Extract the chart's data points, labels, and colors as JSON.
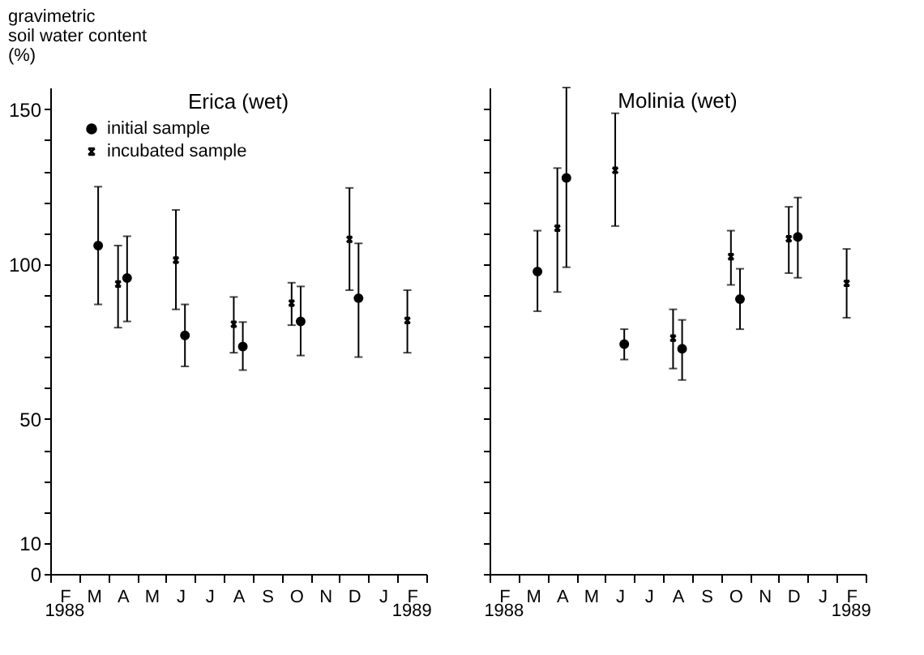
{
  "chart_data": [
    {
      "type": "scatter",
      "title": "Erica (wet)",
      "ylabel": "gravimetric\nsoil water content\n(%)",
      "categories": [
        "F",
        "M",
        "A",
        "M",
        "J",
        "J",
        "A",
        "S",
        "O",
        "N",
        "D",
        "J",
        "F"
      ],
      "ylim": [
        0,
        157
      ],
      "yticks": [
        0,
        10,
        {
          "value": 20,
          "label": null
        },
        {
          "value": 30,
          "label": null
        },
        {
          "value": 40,
          "label": null
        },
        50,
        {
          "value": 60,
          "label": null
        },
        {
          "value": 70,
          "label": null
        },
        {
          "value": 80,
          "label": null
        },
        {
          "value": 90,
          "label": null
        },
        100,
        {
          "value": 110,
          "label": null
        },
        {
          "value": 120,
          "label": null
        },
        {
          "value": 130,
          "label": null
        },
        {
          "value": 140,
          "label": null
        },
        150
      ],
      "legend": "top left",
      "annotations": [
        "1988",
        "1989"
      ],
      "series": [
        {
          "name": "initial sample",
          "color": "#000000",
          "marker": "circle",
          "values": [
            null,
            106,
            95.5,
            null,
            77,
            null,
            73.4,
            null,
            81.5,
            null,
            89,
            null,
            null
          ],
          "errors": [
            null,
            [
              87,
              125
            ],
            [
              81.5,
              109
            ],
            null,
            [
              67,
              87
            ],
            null,
            [
              65.8,
              81.3
            ],
            null,
            [
              70.5,
              92.8
            ],
            null,
            [
              70,
              106.7
            ],
            null,
            null
          ]
        },
        {
          "name": "incubated sample",
          "color": "#000000",
          "marker": "cross",
          "values": [
            null,
            null,
            93.6,
            null,
            101.3,
            null,
            80.6,
            null,
            87.4,
            null,
            108,
            null,
            81.8
          ],
          "errors": [
            null,
            null,
            [
              79.5,
              106
            ],
            null,
            [
              85.4,
              117.5
            ],
            null,
            [
              71.4,
              89.4
            ],
            null,
            [
              80.3,
              94
            ],
            null,
            [
              91.6,
              124.6
            ],
            null,
            [
              71.4,
              91.6
            ]
          ]
        }
      ]
    },
    {
      "type": "scatter",
      "title": "Molinia (wet)",
      "categories": [
        "F",
        "M",
        "A",
        "M",
        "J",
        "J",
        "A",
        "S",
        "O",
        "N",
        "D",
        "J",
        "F"
      ],
      "ylim": [
        0,
        157
      ],
      "yticks": [
        0,
        10,
        {
          "value": 20,
          "label": null
        },
        {
          "value": 30,
          "label": null
        },
        {
          "value": 40,
          "label": null
        },
        50,
        {
          "value": 60,
          "label": null
        },
        {
          "value": 70,
          "label": null
        },
        {
          "value": 80,
          "label": null
        },
        {
          "value": 90,
          "label": null
        },
        100,
        {
          "value": 110,
          "label": null
        },
        {
          "value": 120,
          "label": null
        },
        {
          "value": 130,
          "label": null
        },
        {
          "value": 140,
          "label": null
        },
        150
      ],
      "tick_labels": "x",
      "annotations": [
        "1988",
        "1989"
      ],
      "series": [
        {
          "color": "#000000",
          "marker": "circle",
          "values": [
            null,
            97.6,
            127.8,
            null,
            74.2,
            null,
            72.7,
            null,
            88.7,
            null,
            108.8,
            null,
            null
          ],
          "errors": [
            null,
            [
              84.8,
              110.8
            ],
            [
              99,
              157
            ],
            null,
            [
              69.2,
              79
            ],
            null,
            [
              62.6,
              82
            ],
            null,
            [
              79,
              98.5
            ],
            null,
            [
              95.6,
              121.5
            ],
            null,
            null
          ]
        },
        {
          "color": "#000000",
          "marker": "cross",
          "values": [
            null,
            null,
            111.6,
            null,
            130.3,
            null,
            76.1,
            null,
            102.4,
            null,
            108.2,
            null,
            93.8
          ],
          "errors": [
            null,
            null,
            [
              91,
              131
            ],
            null,
            [
              112.3,
              148.7
            ],
            null,
            [
              66.3,
              85.4
            ],
            null,
            [
              93.3,
              110.8
            ],
            null,
            [
              97.1,
              118.5
            ],
            null,
            [
              82.7,
              104.9
            ]
          ]
        }
      ]
    }
  ]
}
